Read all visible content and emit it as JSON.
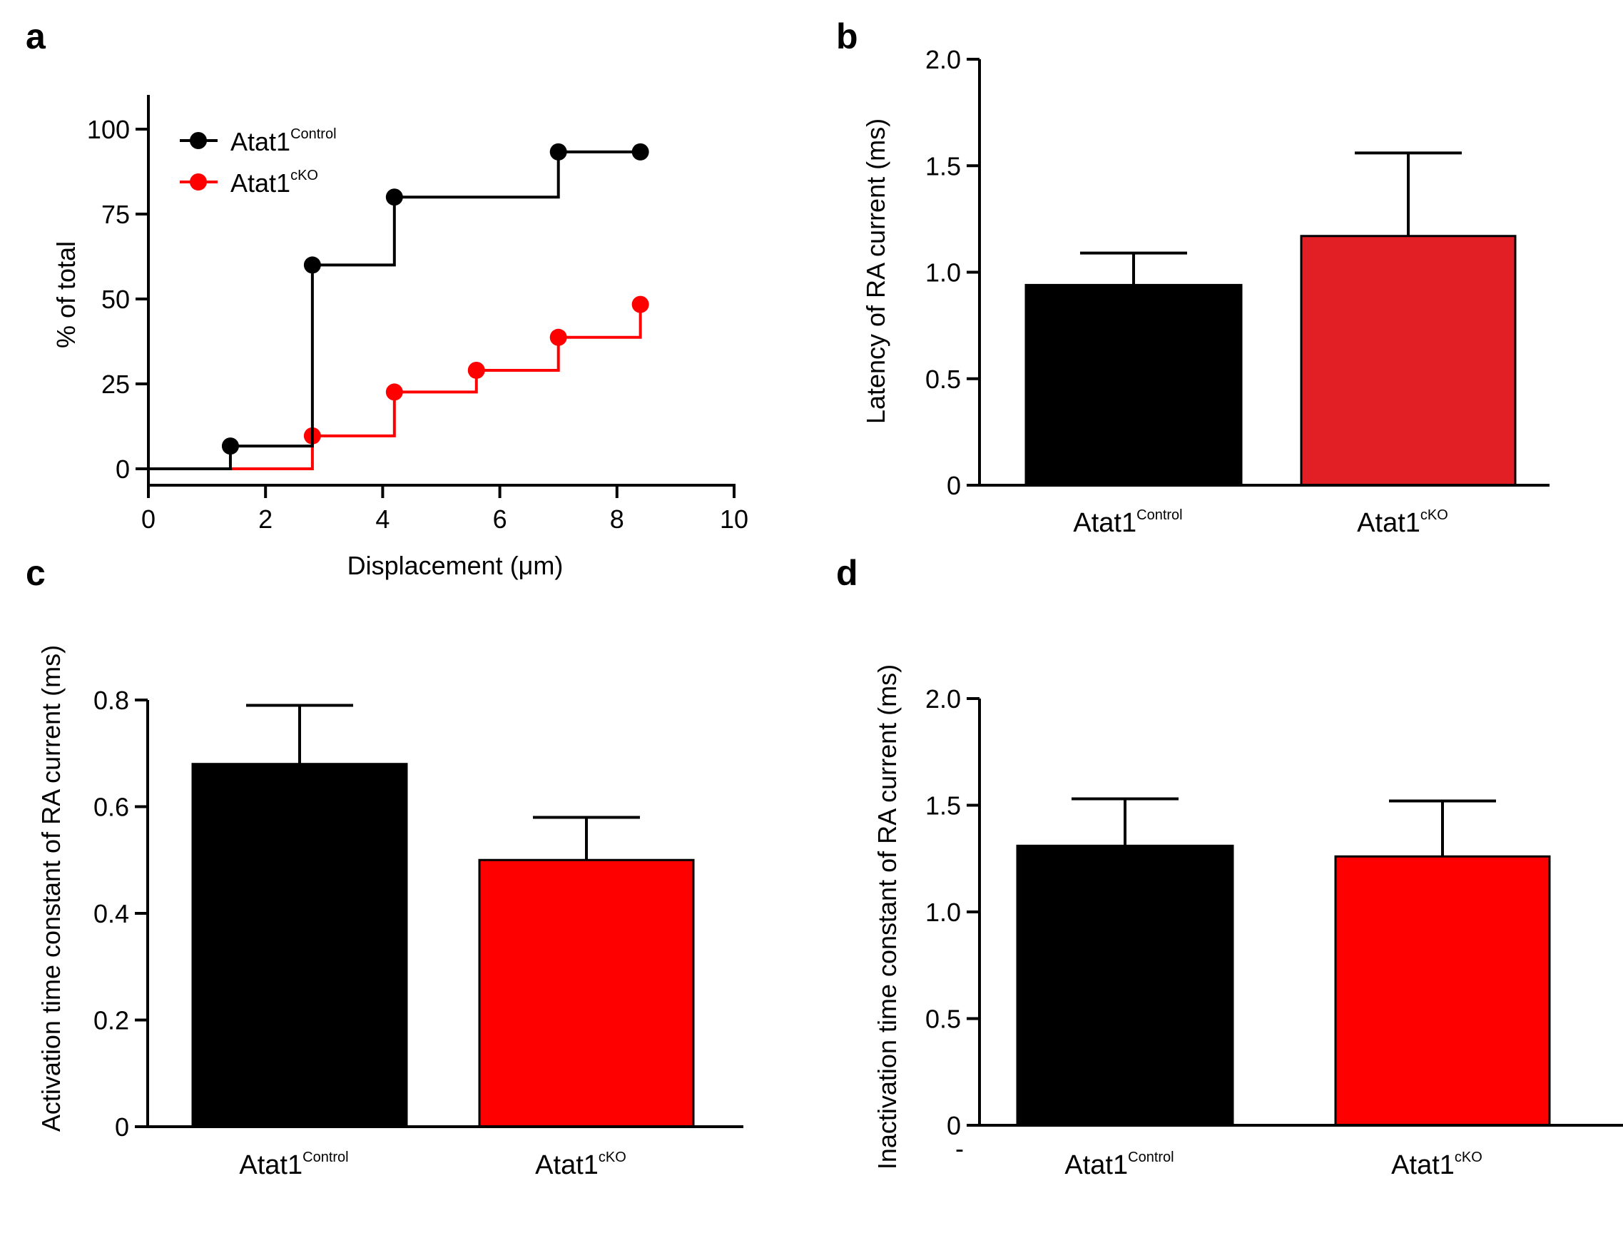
{
  "figure": {
    "panel_labels": [
      "a",
      "b",
      "c",
      "d"
    ],
    "stray_mark": "-"
  },
  "chart_data": [
    {
      "panel": "a",
      "type": "line",
      "style": "step",
      "title": "",
      "xlabel": "Displacement (μm)",
      "ylabel": "% of total",
      "xlim": [
        0,
        10
      ],
      "ylim": [
        -5,
        110
      ],
      "xticks": [
        0,
        2,
        4,
        6,
        8,
        10
      ],
      "xtick_labels": [
        "0",
        "2",
        "4",
        "6",
        "8",
        "10"
      ],
      "yticks": [
        0,
        25,
        50,
        75,
        100
      ],
      "ytick_labels": [
        "0",
        "25",
        "50",
        "75",
        "100"
      ],
      "grid": false,
      "legend_position": "top-left",
      "series": [
        {
          "name": "Atat1",
          "name_sup": "Control",
          "color": "#000000",
          "start": [
            0,
            0
          ],
          "x": [
            1.4,
            2.8,
            4.2,
            7.0,
            8.4
          ],
          "y": [
            6.7,
            60.0,
            80.0,
            93.3,
            93.3
          ]
        },
        {
          "name": "Atat1",
          "name_sup": "cKO",
          "color": "#ff0000",
          "start": [
            0,
            0
          ],
          "x": [
            2.8,
            4.2,
            5.6,
            7.0,
            8.4
          ],
          "y": [
            9.7,
            22.6,
            29.0,
            38.7,
            48.4
          ]
        }
      ]
    },
    {
      "panel": "b",
      "type": "bar",
      "title": "",
      "xlabel": "",
      "ylabel": "Latency of RA current (ms)",
      "ylim": [
        0,
        2.0
      ],
      "yticks": [
        0,
        0.5,
        1.0,
        1.5,
        2.0
      ],
      "ytick_labels": [
        "0",
        "0.5",
        "1.0",
        "1.5",
        "2.0"
      ],
      "grid": false,
      "categories": [
        {
          "name": "Atat1",
          "sup": "Control"
        },
        {
          "name": "Atat1",
          "sup": "cKO"
        }
      ],
      "values": [
        0.94,
        1.17
      ],
      "error_upper": [
        1.09,
        1.56
      ],
      "colors": [
        "#000000",
        "#e31f26"
      ]
    },
    {
      "panel": "c",
      "type": "bar",
      "title": "",
      "xlabel": "",
      "ylabel": "Activation time constant of RA current (ms)",
      "ylim": [
        0,
        0.8
      ],
      "yticks": [
        0,
        0.2,
        0.4,
        0.6,
        0.8
      ],
      "ytick_labels": [
        "0",
        "0.2",
        "0.4",
        "0.6",
        "0.8"
      ],
      "grid": false,
      "categories": [
        {
          "name": "Atat1",
          "sup": "Control"
        },
        {
          "name": "Atat1",
          "sup": "cKO"
        }
      ],
      "values": [
        0.68,
        0.5
      ],
      "error_upper": [
        0.79,
        0.58
      ],
      "colors": [
        "#000000",
        "#ff0000"
      ]
    },
    {
      "panel": "d",
      "type": "bar",
      "title": "",
      "xlabel": "",
      "ylabel": "Inactivation time constant of RA current (ms)",
      "ylim": [
        0,
        2.0
      ],
      "yticks": [
        0,
        0.5,
        1.0,
        1.5,
        2.0
      ],
      "ytick_labels": [
        "0",
        "0.5",
        "1.0",
        "1.5",
        "2.0"
      ],
      "grid": false,
      "categories": [
        {
          "name": "Atat1",
          "sup": "Control"
        },
        {
          "name": "Atat1",
          "sup": "cKO"
        }
      ],
      "values": [
        1.31,
        1.26
      ],
      "error_upper": [
        1.53,
        1.52
      ],
      "colors": [
        "#000000",
        "#ff0000"
      ]
    }
  ]
}
